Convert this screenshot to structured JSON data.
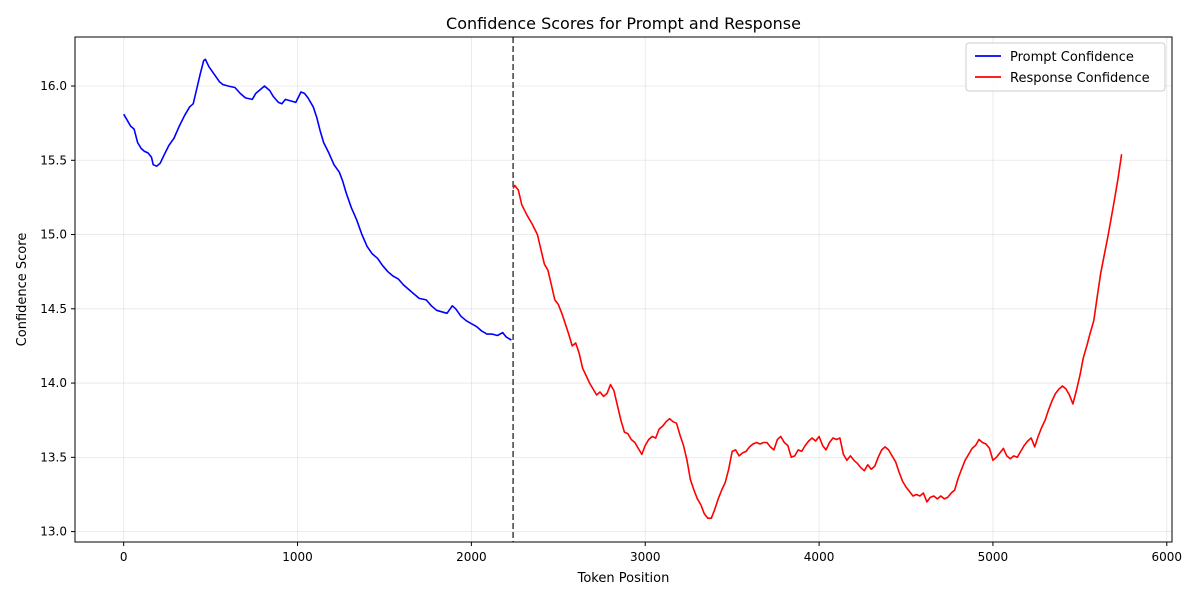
{
  "chart_data": {
    "type": "line",
    "title": "Confidence Scores for Prompt and Response",
    "xlabel": "Token Position",
    "ylabel": "Confidence Score",
    "xlim": [
      -280,
      6030
    ],
    "ylim": [
      12.93,
      16.33
    ],
    "x_ticks": [
      0,
      1000,
      2000,
      3000,
      4000,
      5000,
      6000
    ],
    "y_ticks": [
      13.0,
      13.5,
      14.0,
      14.5,
      15.0,
      15.5,
      16.0
    ],
    "x_tick_labels": [
      "0",
      "1000",
      "2000",
      "3000",
      "4000",
      "5000",
      "6000"
    ],
    "y_tick_labels": [
      "13.0",
      "13.5",
      "14.0",
      "14.5",
      "15.0",
      "15.5",
      "16.0"
    ],
    "grid": true,
    "legend_position": "top-right",
    "divider_x": 2240,
    "series": [
      {
        "name": "Prompt Confidence",
        "color": "#0000ff",
        "points": [
          [
            0,
            15.81
          ],
          [
            20,
            15.77
          ],
          [
            40,
            15.73
          ],
          [
            60,
            15.71
          ],
          [
            80,
            15.62
          ],
          [
            100,
            15.58
          ],
          [
            120,
            15.56
          ],
          [
            140,
            15.55
          ],
          [
            160,
            15.52
          ],
          [
            170,
            15.47
          ],
          [
            190,
            15.46
          ],
          [
            210,
            15.48
          ],
          [
            230,
            15.53
          ],
          [
            260,
            15.6
          ],
          [
            290,
            15.65
          ],
          [
            320,
            15.73
          ],
          [
            350,
            15.8
          ],
          [
            380,
            15.86
          ],
          [
            400,
            15.88
          ],
          [
            420,
            15.98
          ],
          [
            440,
            16.08
          ],
          [
            460,
            16.17
          ],
          [
            470,
            16.18
          ],
          [
            490,
            16.13
          ],
          [
            520,
            16.08
          ],
          [
            550,
            16.03
          ],
          [
            570,
            16.01
          ],
          [
            600,
            16.0
          ],
          [
            640,
            15.99
          ],
          [
            670,
            15.95
          ],
          [
            700,
            15.92
          ],
          [
            740,
            15.91
          ],
          [
            760,
            15.95
          ],
          [
            790,
            15.98
          ],
          [
            810,
            16.0
          ],
          [
            840,
            15.97
          ],
          [
            860,
            15.93
          ],
          [
            890,
            15.89
          ],
          [
            910,
            15.88
          ],
          [
            930,
            15.91
          ],
          [
            960,
            15.9
          ],
          [
            990,
            15.89
          ],
          [
            1020,
            15.96
          ],
          [
            1040,
            15.95
          ],
          [
            1060,
            15.92
          ],
          [
            1090,
            15.86
          ],
          [
            1110,
            15.79
          ],
          [
            1130,
            15.7
          ],
          [
            1150,
            15.62
          ],
          [
            1180,
            15.55
          ],
          [
            1210,
            15.47
          ],
          [
            1240,
            15.42
          ],
          [
            1260,
            15.36
          ],
          [
            1280,
            15.28
          ],
          [
            1310,
            15.18
          ],
          [
            1340,
            15.1
          ],
          [
            1370,
            15.0
          ],
          [
            1400,
            14.92
          ],
          [
            1430,
            14.87
          ],
          [
            1460,
            14.84
          ],
          [
            1490,
            14.79
          ],
          [
            1520,
            14.75
          ],
          [
            1550,
            14.72
          ],
          [
            1580,
            14.7
          ],
          [
            1610,
            14.66
          ],
          [
            1640,
            14.63
          ],
          [
            1670,
            14.6
          ],
          [
            1700,
            14.57
          ],
          [
            1740,
            14.56
          ],
          [
            1770,
            14.52
          ],
          [
            1800,
            14.49
          ],
          [
            1830,
            14.48
          ],
          [
            1860,
            14.47
          ],
          [
            1890,
            14.52
          ],
          [
            1910,
            14.5
          ],
          [
            1940,
            14.45
          ],
          [
            1970,
            14.42
          ],
          [
            2000,
            14.4
          ],
          [
            2030,
            14.38
          ],
          [
            2060,
            14.35
          ],
          [
            2090,
            14.33
          ],
          [
            2120,
            14.33
          ],
          [
            2150,
            14.32
          ],
          [
            2180,
            14.34
          ],
          [
            2200,
            14.31
          ],
          [
            2230,
            14.29
          ]
        ]
      },
      {
        "name": "Response Confidence",
        "color": "#ff0000",
        "points": [
          [
            2240,
            15.31
          ],
          [
            2250,
            15.33
          ],
          [
            2270,
            15.3
          ],
          [
            2290,
            15.2
          ],
          [
            2320,
            15.13
          ],
          [
            2350,
            15.07
          ],
          [
            2380,
            15.0
          ],
          [
            2400,
            14.9
          ],
          [
            2420,
            14.8
          ],
          [
            2440,
            14.76
          ],
          [
            2460,
            14.66
          ],
          [
            2480,
            14.56
          ],
          [
            2500,
            14.53
          ],
          [
            2520,
            14.47
          ],
          [
            2540,
            14.4
          ],
          [
            2560,
            14.33
          ],
          [
            2580,
            14.25
          ],
          [
            2600,
            14.27
          ],
          [
            2620,
            14.2
          ],
          [
            2640,
            14.1
          ],
          [
            2660,
            14.05
          ],
          [
            2680,
            14.0
          ],
          [
            2700,
            13.96
          ],
          [
            2720,
            13.92
          ],
          [
            2740,
            13.94
          ],
          [
            2760,
            13.91
          ],
          [
            2780,
            13.93
          ],
          [
            2800,
            13.99
          ],
          [
            2820,
            13.95
          ],
          [
            2840,
            13.85
          ],
          [
            2860,
            13.75
          ],
          [
            2880,
            13.67
          ],
          [
            2900,
            13.66
          ],
          [
            2920,
            13.62
          ],
          [
            2940,
            13.6
          ],
          [
            2960,
            13.56
          ],
          [
            2980,
            13.52
          ],
          [
            3000,
            13.58
          ],
          [
            3020,
            13.62
          ],
          [
            3040,
            13.64
          ],
          [
            3060,
            13.63
          ],
          [
            3080,
            13.69
          ],
          [
            3100,
            13.71
          ],
          [
            3120,
            13.74
          ],
          [
            3140,
            13.76
          ],
          [
            3160,
            13.74
          ],
          [
            3180,
            13.73
          ],
          [
            3200,
            13.65
          ],
          [
            3220,
            13.58
          ],
          [
            3240,
            13.48
          ],
          [
            3260,
            13.35
          ],
          [
            3280,
            13.28
          ],
          [
            3300,
            13.22
          ],
          [
            3320,
            13.18
          ],
          [
            3340,
            13.12
          ],
          [
            3360,
            13.09
          ],
          [
            3380,
            13.09
          ],
          [
            3400,
            13.15
          ],
          [
            3420,
            13.22
          ],
          [
            3440,
            13.28
          ],
          [
            3460,
            13.33
          ],
          [
            3480,
            13.42
          ],
          [
            3500,
            13.54
          ],
          [
            3520,
            13.55
          ],
          [
            3540,
            13.51
          ],
          [
            3560,
            13.53
          ],
          [
            3580,
            13.54
          ],
          [
            3600,
            13.57
          ],
          [
            3620,
            13.59
          ],
          [
            3640,
            13.6
          ],
          [
            3660,
            13.59
          ],
          [
            3680,
            13.6
          ],
          [
            3700,
            13.6
          ],
          [
            3720,
            13.57
          ],
          [
            3740,
            13.55
          ],
          [
            3760,
            13.62
          ],
          [
            3780,
            13.64
          ],
          [
            3800,
            13.6
          ],
          [
            3820,
            13.58
          ],
          [
            3840,
            13.5
          ],
          [
            3860,
            13.51
          ],
          [
            3880,
            13.55
          ],
          [
            3900,
            13.54
          ],
          [
            3920,
            13.58
          ],
          [
            3940,
            13.61
          ],
          [
            3960,
            13.63
          ],
          [
            3980,
            13.61
          ],
          [
            4000,
            13.64
          ],
          [
            4020,
            13.58
          ],
          [
            4040,
            13.55
          ],
          [
            4060,
            13.6
          ],
          [
            4080,
            13.63
          ],
          [
            4100,
            13.62
          ],
          [
            4120,
            13.63
          ],
          [
            4140,
            13.52
          ],
          [
            4160,
            13.48
          ],
          [
            4180,
            13.51
          ],
          [
            4200,
            13.48
          ],
          [
            4220,
            13.46
          ],
          [
            4240,
            13.43
          ],
          [
            4260,
            13.41
          ],
          [
            4280,
            13.45
          ],
          [
            4300,
            13.42
          ],
          [
            4320,
            13.44
          ],
          [
            4340,
            13.5
          ],
          [
            4360,
            13.55
          ],
          [
            4380,
            13.57
          ],
          [
            4400,
            13.55
          ],
          [
            4420,
            13.51
          ],
          [
            4440,
            13.47
          ],
          [
            4460,
            13.4
          ],
          [
            4480,
            13.34
          ],
          [
            4500,
            13.3
          ],
          [
            4520,
            13.27
          ],
          [
            4540,
            13.24
          ],
          [
            4560,
            13.25
          ],
          [
            4580,
            13.24
          ],
          [
            4600,
            13.26
          ],
          [
            4620,
            13.2
          ],
          [
            4640,
            13.23
          ],
          [
            4660,
            13.24
          ],
          [
            4680,
            13.22
          ],
          [
            4700,
            13.24
          ],
          [
            4720,
            13.22
          ],
          [
            4740,
            13.23
          ],
          [
            4760,
            13.26
          ],
          [
            4780,
            13.28
          ],
          [
            4800,
            13.36
          ],
          [
            4820,
            13.42
          ],
          [
            4840,
            13.48
          ],
          [
            4860,
            13.52
          ],
          [
            4880,
            13.56
          ],
          [
            4900,
            13.58
          ],
          [
            4920,
            13.62
          ],
          [
            4940,
            13.6
          ],
          [
            4960,
            13.59
          ],
          [
            4980,
            13.56
          ],
          [
            5000,
            13.48
          ],
          [
            5020,
            13.5
          ],
          [
            5040,
            13.53
          ],
          [
            5060,
            13.56
          ],
          [
            5080,
            13.51
          ],
          [
            5100,
            13.49
          ],
          [
            5120,
            13.51
          ],
          [
            5140,
            13.5
          ],
          [
            5160,
            13.54
          ],
          [
            5180,
            13.58
          ],
          [
            5200,
            13.61
          ],
          [
            5220,
            13.63
          ],
          [
            5240,
            13.57
          ],
          [
            5260,
            13.64
          ],
          [
            5280,
            13.7
          ],
          [
            5300,
            13.75
          ],
          [
            5320,
            13.82
          ],
          [
            5340,
            13.88
          ],
          [
            5360,
            13.93
          ],
          [
            5380,
            13.96
          ],
          [
            5400,
            13.98
          ],
          [
            5420,
            13.96
          ],
          [
            5440,
            13.92
          ],
          [
            5460,
            13.86
          ],
          [
            5480,
            13.95
          ],
          [
            5500,
            14.05
          ],
          [
            5520,
            14.17
          ],
          [
            5540,
            14.25
          ],
          [
            5560,
            14.34
          ],
          [
            5580,
            14.42
          ],
          [
            5600,
            14.58
          ],
          [
            5620,
            14.74
          ],
          [
            5640,
            14.86
          ],
          [
            5660,
            14.98
          ],
          [
            5680,
            15.11
          ],
          [
            5700,
            15.24
          ],
          [
            5720,
            15.38
          ],
          [
            5740,
            15.54
          ]
        ]
      }
    ]
  }
}
